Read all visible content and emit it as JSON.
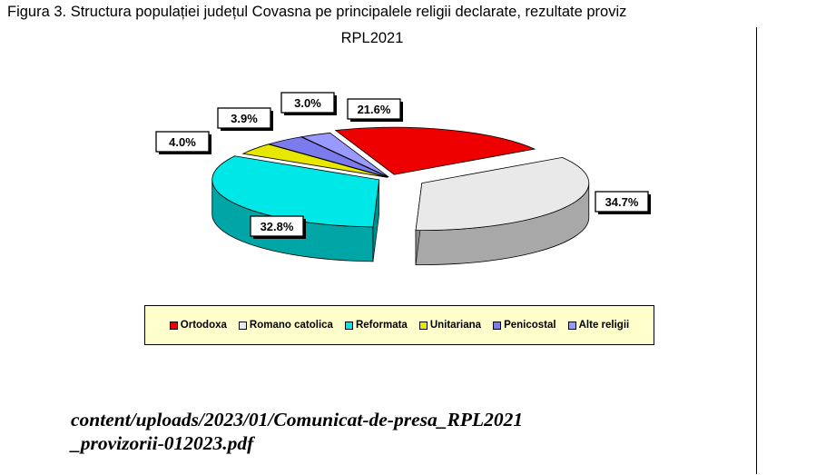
{
  "figure": {
    "title": "Figura 3. Structura populației județul Covasna pe principalele religii declarate, rezultate proviz",
    "subtitle": "RPL2021"
  },
  "chart_data": {
    "type": "pie",
    "title": "Figura 3. Structura populației județul Covasna pe principalele religii declarate, rezultate proviz",
    "subtitle": "RPL2021",
    "categories": [
      "Ortodoxa",
      "Romano catolica",
      "Reformata",
      "Unitariana",
      "Penicostal",
      "Alte religii"
    ],
    "values": [
      21.6,
      34.7,
      32.8,
      4.0,
      3.9,
      3.0
    ],
    "labels": [
      "21.6%",
      "34.7%",
      "32.8%",
      "4.0%",
      "3.9%",
      "3.0%"
    ],
    "colors": [
      "#ee0000",
      "#e9e9e9",
      "#00e7e7",
      "#e7e700",
      "#7b7bee",
      "#9999ff"
    ],
    "legend_placement": "bottom",
    "three_d": true
  },
  "caption": {
    "line1": "content/uploads/2023/01/Comunicat-de-presa_RPL2021",
    "line2": "_provizorii-012023.pdf"
  }
}
